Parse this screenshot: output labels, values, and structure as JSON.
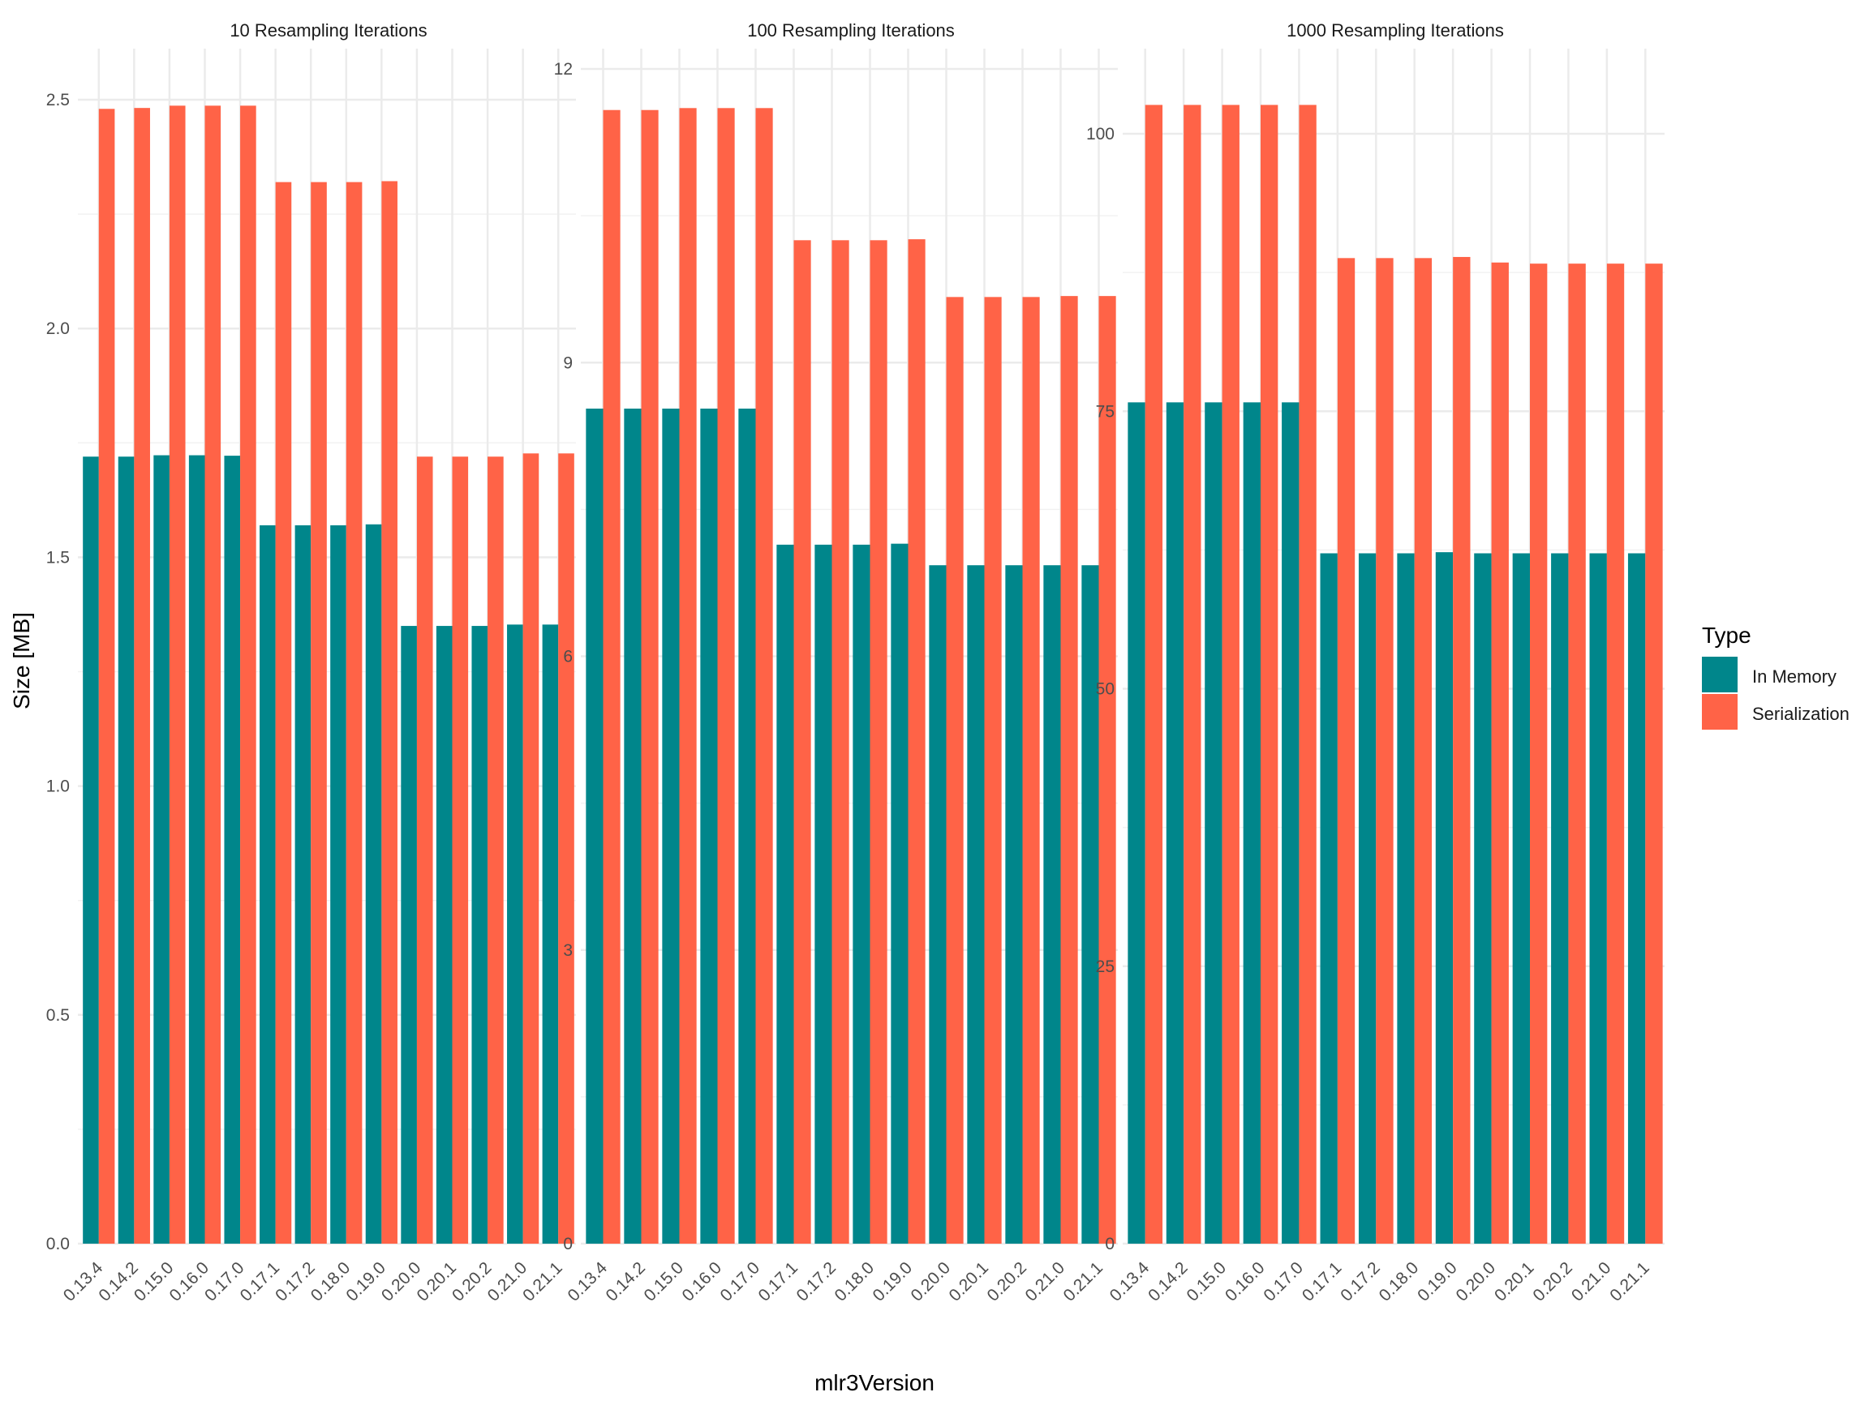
{
  "chart_data": {
    "type": "bar",
    "layout": "faceted-grouped-bar",
    "xlabel": "mlr3Version",
    "ylabel": "Size [MB]",
    "categories": [
      "0.13.4",
      "0.14.2",
      "0.15.0",
      "0.16.0",
      "0.17.0",
      "0.17.1",
      "0.17.2",
      "0.18.0",
      "0.19.0",
      "0.20.0",
      "0.20.1",
      "0.20.2",
      "0.21.0",
      "0.21.1"
    ],
    "legend": {
      "title": "Type",
      "position": "right",
      "entries": [
        {
          "name": "In Memory",
          "color": "#00868B"
        },
        {
          "name": "Serialization",
          "color": "#FF6347"
        }
      ]
    },
    "grid": true,
    "facets": [
      {
        "title": "10 Resampling Iterations",
        "ylim": [
          0,
          2.5
        ],
        "yticks": [
          "0.0",
          "0.5",
          "1.0",
          "1.5",
          "2.0",
          "2.5"
        ],
        "series": [
          {
            "name": "In Memory",
            "values": [
              1.72,
              1.72,
              1.723,
              1.723,
              1.722,
              1.57,
              1.57,
              1.57,
              1.572,
              1.35,
              1.35,
              1.35,
              1.353,
              1.353
            ]
          },
          {
            "name": "Serialization",
            "values": [
              2.48,
              2.482,
              2.487,
              2.487,
              2.487,
              2.32,
              2.32,
              2.32,
              2.322,
              1.72,
              1.72,
              1.72,
              1.727,
              1.727
            ]
          }
        ]
      },
      {
        "title": "100 Resampling Iterations",
        "ylim": [
          0,
          12
        ],
        "yticks": [
          "0",
          "3",
          "6",
          "9",
          "12"
        ],
        "series": [
          {
            "name": "In Memory",
            "values": [
              8.53,
              8.53,
              8.53,
              8.53,
              8.53,
              7.14,
              7.14,
              7.14,
              7.15,
              6.93,
              6.93,
              6.93,
              6.93,
              6.93
            ]
          },
          {
            "name": "Serialization",
            "values": [
              11.58,
              11.58,
              11.6,
              11.6,
              11.6,
              10.25,
              10.25,
              10.25,
              10.26,
              9.67,
              9.67,
              9.67,
              9.68,
              9.68
            ]
          }
        ]
      },
      {
        "title": "1000 Resampling Iterations",
        "ylim": [
          0,
          100
        ],
        "yticks": [
          "0",
          "25",
          "50",
          "75",
          "100"
        ],
        "series": [
          {
            "name": "In Memory",
            "values": [
              75.8,
              75.8,
              75.8,
              75.8,
              75.8,
              62.2,
              62.2,
              62.2,
              62.3,
              62.2,
              62.2,
              62.2,
              62.2,
              62.2
            ]
          },
          {
            "name": "Serialization",
            "values": [
              102.6,
              102.6,
              102.6,
              102.6,
              102.6,
              88.8,
              88.8,
              88.8,
              88.9,
              88.4,
              88.3,
              88.3,
              88.3,
              88.3
            ]
          }
        ]
      }
    ]
  }
}
